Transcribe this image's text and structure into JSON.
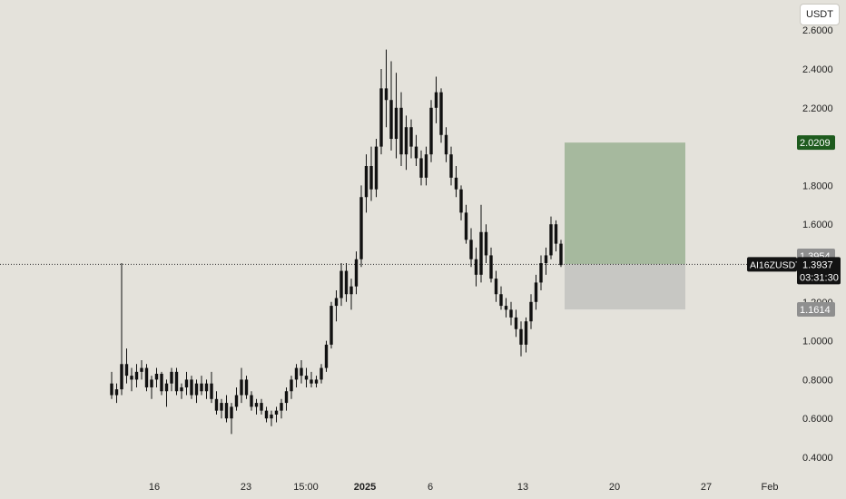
{
  "header": {
    "currency": "USDT"
  },
  "symbol": "AI16ZUSDT",
  "current_price": "1.3937",
  "countdown": "03:31:30",
  "position_tool": {
    "target_price": "2.0209",
    "entry_price": "1.3954",
    "stop_price": "1.1614"
  },
  "colors": {
    "background": "#e4e2db",
    "candle": "#111111",
    "profit_zone": "#a6b99e",
    "loss_zone": "#c7c7c3",
    "target_label": "#1e5b1e",
    "entry_label": "#8f8f8f",
    "stop_label": "#8f8f8f",
    "price_label": "#131313"
  },
  "chart_data": {
    "type": "candlestick",
    "y_axis_ticks": [
      "0.4000",
      "0.6000",
      "0.8000",
      "1.0000",
      "1.2000",
      "1.6000",
      "1.8000",
      "2.2000",
      "2.4000",
      "2.6000"
    ],
    "x_axis_ticks": [
      "16",
      "23",
      "15:00",
      "2025",
      "6",
      "13",
      "20",
      "27",
      "Feb"
    ],
    "ylim": [
      0.4,
      2.62
    ],
    "price_line": 1.3937,
    "series": [
      {
        "values": [
          [
            0.78,
            0.84,
            0.7,
            0.72
          ],
          [
            0.72,
            0.78,
            0.68,
            0.75
          ],
          [
            0.75,
            1.4,
            0.72,
            0.88
          ],
          [
            0.88,
            0.96,
            0.78,
            0.82
          ],
          [
            0.82,
            0.86,
            0.74,
            0.8
          ],
          [
            0.8,
            0.88,
            0.76,
            0.84
          ],
          [
            0.84,
            0.9,
            0.8,
            0.86
          ],
          [
            0.86,
            0.88,
            0.74,
            0.76
          ],
          [
            0.76,
            0.82,
            0.7,
            0.8
          ],
          [
            0.8,
            0.86,
            0.76,
            0.83
          ],
          [
            0.83,
            0.84,
            0.72,
            0.74
          ],
          [
            0.74,
            0.8,
            0.66,
            0.78
          ],
          [
            0.78,
            0.86,
            0.74,
            0.84
          ],
          [
            0.84,
            0.86,
            0.72,
            0.74
          ],
          [
            0.74,
            0.78,
            0.7,
            0.76
          ],
          [
            0.76,
            0.84,
            0.72,
            0.8
          ],
          [
            0.8,
            0.82,
            0.7,
            0.72
          ],
          [
            0.72,
            0.8,
            0.68,
            0.78
          ],
          [
            0.78,
            0.82,
            0.72,
            0.74
          ],
          [
            0.74,
            0.8,
            0.7,
            0.78
          ],
          [
            0.78,
            0.84,
            0.68,
            0.7
          ],
          [
            0.7,
            0.74,
            0.62,
            0.64
          ],
          [
            0.64,
            0.7,
            0.6,
            0.68
          ],
          [
            0.68,
            0.72,
            0.58,
            0.6
          ],
          [
            0.6,
            0.68,
            0.52,
            0.66
          ],
          [
            0.66,
            0.76,
            0.64,
            0.72
          ],
          [
            0.72,
            0.86,
            0.68,
            0.8
          ],
          [
            0.8,
            0.82,
            0.7,
            0.72
          ],
          [
            0.72,
            0.74,
            0.64,
            0.66
          ],
          [
            0.66,
            0.7,
            0.62,
            0.68
          ],
          [
            0.68,
            0.7,
            0.62,
            0.64
          ],
          [
            0.64,
            0.66,
            0.58,
            0.6
          ],
          [
            0.6,
            0.64,
            0.56,
            0.62
          ],
          [
            0.62,
            0.66,
            0.58,
            0.64
          ],
          [
            0.64,
            0.7,
            0.6,
            0.68
          ],
          [
            0.68,
            0.76,
            0.64,
            0.74
          ],
          [
            0.74,
            0.82,
            0.7,
            0.8
          ],
          [
            0.8,
            0.88,
            0.76,
            0.86
          ],
          [
            0.86,
            0.9,
            0.78,
            0.82
          ],
          [
            0.82,
            0.86,
            0.76,
            0.8
          ],
          [
            0.8,
            0.84,
            0.76,
            0.78
          ],
          [
            0.78,
            0.82,
            0.76,
            0.8
          ],
          [
            0.8,
            0.88,
            0.78,
            0.86
          ],
          [
            0.86,
            1.0,
            0.84,
            0.98
          ],
          [
            0.98,
            1.2,
            0.96,
            1.18
          ],
          [
            1.18,
            1.26,
            1.1,
            1.22
          ],
          [
            1.22,
            1.4,
            1.18,
            1.36
          ],
          [
            1.36,
            1.4,
            1.2,
            1.24
          ],
          [
            1.24,
            1.32,
            1.16,
            1.28
          ],
          [
            1.28,
            1.46,
            1.24,
            1.42
          ],
          [
            1.42,
            1.8,
            1.38,
            1.74
          ],
          [
            1.74,
            1.96,
            1.66,
            1.9
          ],
          [
            1.9,
            2.0,
            1.72,
            1.78
          ],
          [
            1.78,
            2.04,
            1.74,
            2.0
          ],
          [
            2.0,
            2.4,
            1.96,
            2.3
          ],
          [
            2.3,
            2.5,
            2.1,
            2.24
          ],
          [
            2.24,
            2.44,
            1.98,
            2.04
          ],
          [
            2.04,
            2.38,
            1.94,
            2.2
          ],
          [
            2.2,
            2.28,
            1.9,
            1.96
          ],
          [
            1.96,
            2.16,
            1.88,
            2.1
          ],
          [
            2.1,
            2.14,
            1.94,
            2.0
          ],
          [
            2.0,
            2.06,
            1.9,
            1.94
          ],
          [
            1.94,
            1.98,
            1.8,
            1.84
          ],
          [
            1.84,
            2.0,
            1.8,
            1.96
          ],
          [
            1.96,
            2.24,
            1.92,
            2.2
          ],
          [
            2.2,
            2.36,
            2.12,
            2.28
          ],
          [
            2.28,
            2.3,
            2.02,
            2.06
          ],
          [
            2.06,
            2.1,
            1.92,
            1.96
          ],
          [
            1.96,
            2.0,
            1.8,
            1.84
          ],
          [
            1.84,
            1.9,
            1.74,
            1.78
          ],
          [
            1.78,
            1.8,
            1.62,
            1.66
          ],
          [
            1.66,
            1.7,
            1.5,
            1.52
          ],
          [
            1.52,
            1.58,
            1.38,
            1.42
          ],
          [
            1.42,
            1.48,
            1.28,
            1.34
          ],
          [
            1.34,
            1.7,
            1.3,
            1.56
          ],
          [
            1.56,
            1.6,
            1.4,
            1.44
          ],
          [
            1.44,
            1.48,
            1.3,
            1.32
          ],
          [
            1.32,
            1.36,
            1.2,
            1.24
          ],
          [
            1.24,
            1.28,
            1.16,
            1.18
          ],
          [
            1.18,
            1.22,
            1.12,
            1.16
          ],
          [
            1.16,
            1.2,
            1.08,
            1.12
          ],
          [
            1.12,
            1.16,
            1.02,
            1.06
          ],
          [
            1.06,
            1.1,
            0.92,
            0.98
          ],
          [
            0.98,
            1.12,
            0.94,
            1.1
          ],
          [
            1.1,
            1.24,
            1.06,
            1.2
          ],
          [
            1.2,
            1.34,
            1.16,
            1.3
          ],
          [
            1.3,
            1.44,
            1.26,
            1.4
          ],
          [
            1.4,
            1.48,
            1.34,
            1.44
          ],
          [
            1.44,
            1.64,
            1.42,
            1.6
          ],
          [
            1.6,
            1.62,
            1.46,
            1.5
          ],
          [
            1.5,
            1.52,
            1.38,
            1.39
          ]
        ]
      }
    ]
  }
}
